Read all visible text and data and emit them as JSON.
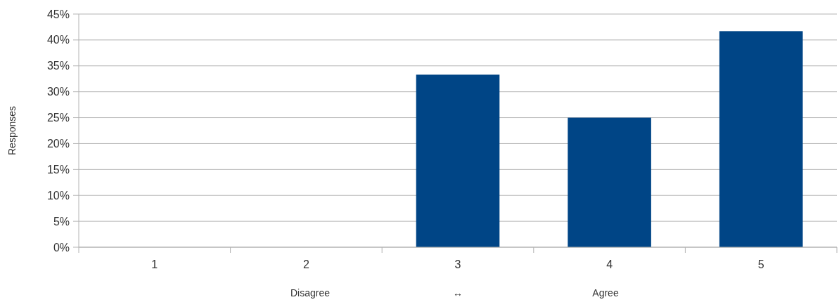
{
  "chart_data": {
    "type": "bar",
    "ylabel": "Responses",
    "xlabel": "Disagree ↔ Agree",
    "categories": [
      "1",
      "2",
      "3",
      "4",
      "5"
    ],
    "values": [
      0,
      0,
      33.3,
      25,
      41.7
    ],
    "color": "#004586",
    "ylim": [
      0,
      45
    ],
    "yticks": [
      {
        "value": 0,
        "label": "0%"
      },
      {
        "value": 5,
        "label": "5%"
      },
      {
        "value": 10,
        "label": "10%"
      },
      {
        "value": 15,
        "label": "15%"
      },
      {
        "value": 20,
        "label": "20%"
      },
      {
        "value": 25,
        "label": "25%"
      },
      {
        "value": 30,
        "label": "30%"
      },
      {
        "value": 35,
        "label": "35%"
      },
      {
        "value": 40,
        "label": "40%"
      },
      {
        "value": 45,
        "label": "45%"
      }
    ],
    "grid": "y"
  }
}
